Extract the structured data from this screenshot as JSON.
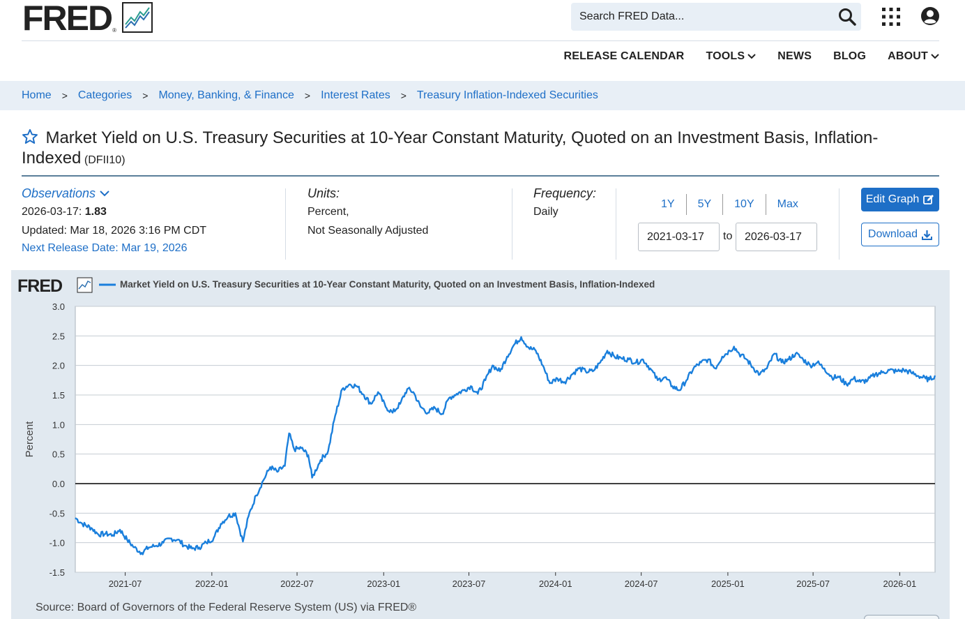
{
  "header": {
    "logo_text": "FRED",
    "logo_reg": "®",
    "search_placeholder": "Search FRED Data...",
    "nav": [
      "RELEASE CALENDAR",
      "TOOLS",
      "NEWS",
      "BLOG",
      "ABOUT"
    ]
  },
  "breadcrumb": [
    "Home",
    "Categories",
    "Money, Banking, & Finance",
    "Interest Rates",
    "Treasury Inflation-Indexed Securities"
  ],
  "series": {
    "title": "Market Yield on U.S. Treasury Securities at 10-Year Constant Maturity, Quoted on an Investment Basis, Inflation-Indexed",
    "id": "(DFII10)"
  },
  "meta": {
    "observations_label": "Observations",
    "obs_date": "2026-03-17:",
    "obs_value": "1.83",
    "updated": "Updated: Mar 18, 2026 3:16 PM CDT",
    "next_release": "Next Release Date: Mar 19, 2026",
    "units_label": "Units:",
    "units_line1": "Percent,",
    "units_line2": "Not Seasonally Adjusted",
    "frequency_label": "Frequency:",
    "frequency_value": "Daily",
    "range_tabs": [
      "1Y",
      "5Y",
      "10Y",
      "Max"
    ],
    "date_from": "2021-03-17",
    "date_to": "2026-03-17",
    "to_label": "to",
    "edit_graph": "Edit Graph",
    "download": "Download"
  },
  "colors": {
    "link": "#1e6fc7",
    "series_line": "#1a7fdc",
    "chart_bg": "#e1e9f0"
  },
  "chart_data": {
    "type": "line",
    "legend": "Market Yield on U.S. Treasury Securities at 10-Year Constant Maturity, Quoted on an Investment Basis, Inflation-Indexed",
    "ylabel": "Percent",
    "ylim": [
      -1.5,
      3.0
    ],
    "yticks": [
      "3.0",
      "2.5",
      "2.0",
      "1.5",
      "1.0",
      "0.5",
      "0.0",
      "-0.5",
      "-1.0",
      "-1.5"
    ],
    "xtick_labels": [
      "2021-07",
      "2022-01",
      "2022-07",
      "2023-01",
      "2023-07",
      "2024-01",
      "2024-07",
      "2025-01",
      "2025-07",
      "2026-01"
    ],
    "xrange": [
      "2021-03-17",
      "2026-03-17"
    ],
    "grid": true,
    "series": [
      {
        "name": "DFII10",
        "points": [
          [
            "2021-03-17",
            -0.58
          ],
          [
            "2021-04-01",
            -0.68
          ],
          [
            "2021-04-20",
            -0.75
          ],
          [
            "2021-05-05",
            -0.86
          ],
          [
            "2021-05-20",
            -0.85
          ],
          [
            "2021-06-05",
            -0.87
          ],
          [
            "2021-06-20",
            -0.78
          ],
          [
            "2021-07-05",
            -0.95
          ],
          [
            "2021-07-20",
            -1.08
          ],
          [
            "2021-08-05",
            -1.17
          ],
          [
            "2021-08-20",
            -1.08
          ],
          [
            "2021-09-05",
            -1.05
          ],
          [
            "2021-09-20",
            -1.0
          ],
          [
            "2021-10-05",
            -0.93
          ],
          [
            "2021-10-20",
            -0.95
          ],
          [
            "2021-11-05",
            -1.05
          ],
          [
            "2021-11-20",
            -1.1
          ],
          [
            "2021-12-05",
            -1.08
          ],
          [
            "2021-12-20",
            -1.0
          ],
          [
            "2022-01-05",
            -0.92
          ],
          [
            "2022-01-20",
            -0.68
          ],
          [
            "2022-02-05",
            -0.55
          ],
          [
            "2022-02-20",
            -0.5
          ],
          [
            "2022-03-08",
            -0.98
          ],
          [
            "2022-03-20",
            -0.55
          ],
          [
            "2022-04-05",
            -0.2
          ],
          [
            "2022-04-20",
            0.05
          ],
          [
            "2022-05-05",
            0.28
          ],
          [
            "2022-05-20",
            0.2
          ],
          [
            "2022-06-05",
            0.3
          ],
          [
            "2022-06-14",
            0.85
          ],
          [
            "2022-06-25",
            0.58
          ],
          [
            "2022-07-10",
            0.6
          ],
          [
            "2022-07-25",
            0.48
          ],
          [
            "2022-08-02",
            0.1
          ],
          [
            "2022-08-20",
            0.4
          ],
          [
            "2022-09-05",
            0.55
          ],
          [
            "2022-09-20",
            1.15
          ],
          [
            "2022-10-05",
            1.6
          ],
          [
            "2022-10-20",
            1.68
          ],
          [
            "2022-11-05",
            1.65
          ],
          [
            "2022-11-20",
            1.5
          ],
          [
            "2022-12-05",
            1.35
          ],
          [
            "2022-12-20",
            1.55
          ],
          [
            "2023-01-05",
            1.3
          ],
          [
            "2023-01-20",
            1.2
          ],
          [
            "2023-02-05",
            1.35
          ],
          [
            "2023-02-20",
            1.6
          ],
          [
            "2023-03-05",
            1.55
          ],
          [
            "2023-03-20",
            1.3
          ],
          [
            "2023-04-05",
            1.2
          ],
          [
            "2023-04-20",
            1.28
          ],
          [
            "2023-05-05",
            1.18
          ],
          [
            "2023-05-20",
            1.45
          ],
          [
            "2023-06-05",
            1.52
          ],
          [
            "2023-06-20",
            1.58
          ],
          [
            "2023-07-05",
            1.65
          ],
          [
            "2023-07-20",
            1.52
          ],
          [
            "2023-08-05",
            1.75
          ],
          [
            "2023-08-20",
            2.0
          ],
          [
            "2023-09-05",
            1.9
          ],
          [
            "2023-09-20",
            2.15
          ],
          [
            "2023-10-05",
            2.35
          ],
          [
            "2023-10-20",
            2.48
          ],
          [
            "2023-11-05",
            2.3
          ],
          [
            "2023-11-20",
            2.25
          ],
          [
            "2023-12-05",
            2.0
          ],
          [
            "2023-12-20",
            1.7
          ],
          [
            "2024-01-05",
            1.78
          ],
          [
            "2024-01-20",
            1.72
          ],
          [
            "2024-02-05",
            1.85
          ],
          [
            "2024-02-20",
            1.95
          ],
          [
            "2024-03-05",
            1.9
          ],
          [
            "2024-03-20",
            1.9
          ],
          [
            "2024-04-05",
            2.05
          ],
          [
            "2024-04-20",
            2.25
          ],
          [
            "2024-05-05",
            2.15
          ],
          [
            "2024-05-20",
            2.12
          ],
          [
            "2024-06-05",
            2.1
          ],
          [
            "2024-06-20",
            2.05
          ],
          [
            "2024-07-05",
            2.1
          ],
          [
            "2024-07-20",
            1.95
          ],
          [
            "2024-08-05",
            1.75
          ],
          [
            "2024-08-20",
            1.8
          ],
          [
            "2024-09-05",
            1.65
          ],
          [
            "2024-09-20",
            1.58
          ],
          [
            "2024-10-05",
            1.75
          ],
          [
            "2024-10-20",
            1.95
          ],
          [
            "2024-11-05",
            2.05
          ],
          [
            "2024-11-20",
            2.1
          ],
          [
            "2024-12-05",
            1.95
          ],
          [
            "2024-12-20",
            2.15
          ],
          [
            "2025-01-05",
            2.25
          ],
          [
            "2025-01-14",
            2.32
          ],
          [
            "2025-01-25",
            2.2
          ],
          [
            "2025-02-10",
            2.1
          ],
          [
            "2025-02-25",
            1.95
          ],
          [
            "2025-03-10",
            1.85
          ],
          [
            "2025-03-25",
            1.95
          ],
          [
            "2025-04-10",
            2.2
          ],
          [
            "2025-04-25",
            2.05
          ],
          [
            "2025-05-10",
            2.1
          ],
          [
            "2025-05-25",
            2.2
          ],
          [
            "2025-06-10",
            2.1
          ],
          [
            "2025-06-25",
            2.0
          ],
          [
            "2025-07-10",
            2.05
          ],
          [
            "2025-07-25",
            1.95
          ],
          [
            "2025-08-10",
            1.8
          ],
          [
            "2025-08-25",
            1.8
          ],
          [
            "2025-09-10",
            1.68
          ],
          [
            "2025-09-25",
            1.78
          ],
          [
            "2025-10-10",
            1.72
          ],
          [
            "2025-10-25",
            1.75
          ],
          [
            "2025-11-10",
            1.85
          ],
          [
            "2025-11-25",
            1.88
          ],
          [
            "2025-12-10",
            1.92
          ],
          [
            "2025-12-25",
            1.9
          ],
          [
            "2026-01-10",
            1.92
          ],
          [
            "2026-01-25",
            1.88
          ],
          [
            "2026-02-10",
            1.82
          ],
          [
            "2026-02-25",
            1.78
          ],
          [
            "2026-03-05",
            1.76
          ],
          [
            "2026-03-17",
            1.83
          ]
        ]
      }
    ],
    "source": "Source: Board of Governors of the Federal Reserve System (US) via FRED®"
  }
}
